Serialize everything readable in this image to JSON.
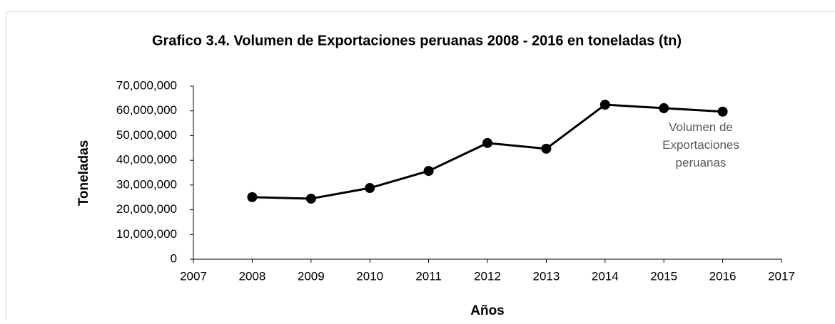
{
  "chart_data": {
    "type": "line",
    "title": "Grafico 3.4. Volumen de Exportaciones peruanas 2008 - 2016 en toneladas (tn)",
    "x_label": "Años",
    "y_label": "Toneladas",
    "x": [
      2008,
      2009,
      2010,
      2011,
      2012,
      2013,
      2014,
      2015,
      2016
    ],
    "series": [
      {
        "name": "Volumen de Exportaciones peruanas",
        "color": "#000000",
        "values": [
          25100000,
          24500000,
          28800000,
          35700000,
          47000000,
          44700000,
          62500000,
          61100000,
          59700000
        ]
      }
    ],
    "xlim": [
      2007,
      2017
    ],
    "xticks": [
      2007,
      2008,
      2009,
      2010,
      2011,
      2012,
      2013,
      2014,
      2015,
      2016,
      2017
    ],
    "ylim": [
      0,
      70000000
    ],
    "yticks": [
      0,
      {
        "value": 10000000,
        "label": "10,000,000"
      },
      {
        "value": 20000000,
        "label": "20,000,000"
      },
      {
        "value": 30000000,
        "label": "30,000,000"
      },
      {
        "value": 40000000,
        "label": "40,000,000"
      },
      {
        "value": 50000000,
        "label": "50,000,000"
      },
      {
        "value": 60000000,
        "label": "60,000,000"
      },
      {
        "value": 70000000,
        "label": "70,000,000"
      }
    ],
    "grid": false
  }
}
